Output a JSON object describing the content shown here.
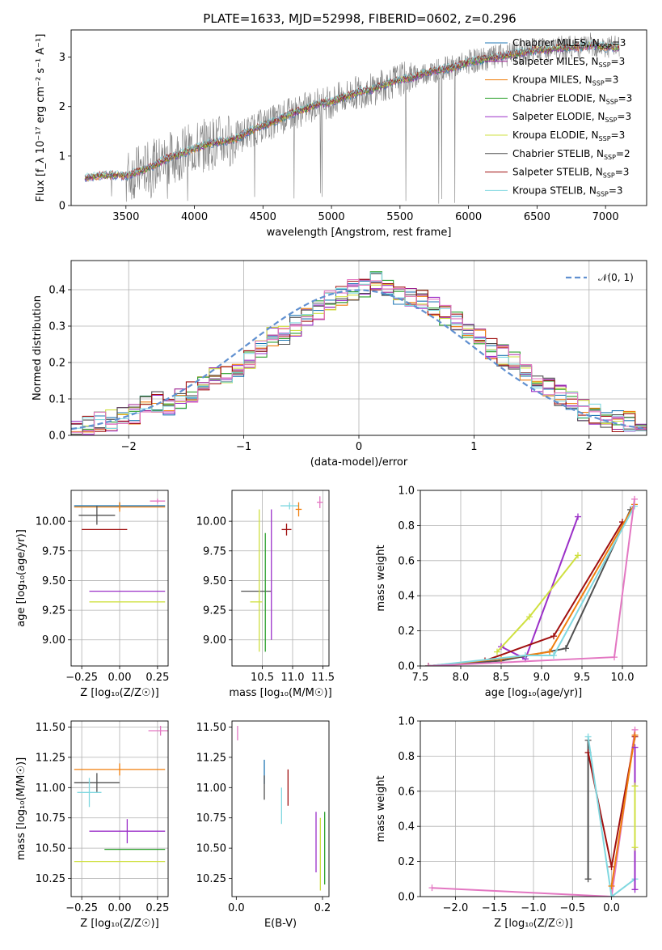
{
  "figure": {
    "title": "PLATE=1633, MJD=52998, FIBERID=0602, z=0.296"
  },
  "colors": {
    "Chabrier MILES": "#1f77b4",
    "Salpeter MILES": "#9c1f8f",
    "Kroupa MILES": "#f07f0e",
    "Chabrier ELODIE": "#2ca02c",
    "Salpeter ELODIE": "#9b30c8",
    "Kroupa ELODIE": "#cfe040",
    "Chabrier STELIB": "#505050",
    "Salpeter STELIB": "#a01010",
    "Kroupa STELIB": "#80d8e0",
    "pink": "#e377c2",
    "normal": "#6090d0"
  },
  "chart_data": [
    {
      "id": "spectrum",
      "type": "line",
      "xlabel": "wavelength [Angstrom, rest frame]",
      "ylabel": "Flux [f_λ 10⁻¹⁷ erg cm⁻² s⁻¹ A⁻¹]",
      "xlim": [
        3100,
        7300
      ],
      "ylim": [
        0,
        3.55
      ],
      "xticks": [
        3500,
        4000,
        4500,
        5000,
        5500,
        6000,
        6500,
        7000
      ],
      "yticks": [
        0,
        1,
        2,
        3
      ],
      "x": [
        3200,
        3300,
        3400,
        3500,
        3600,
        3700,
        3800,
        3900,
        4000,
        4100,
        4200,
        4300,
        4400,
        4500,
        4600,
        4700,
        4800,
        4900,
        5000,
        5100,
        5200,
        5300,
        5400,
        5500,
        5600,
        5700,
        5800,
        5900,
        6000,
        6100,
        6200,
        6300,
        6400,
        6500,
        6600,
        6700,
        6800,
        6900,
        7000,
        7100
      ],
      "series": [
        {
          "name": "data",
          "values": [
            0.55,
            0.6,
            0.62,
            0.6,
            0.7,
            0.8,
            0.95,
            1.05,
            1.15,
            1.25,
            1.3,
            1.35,
            1.5,
            1.62,
            1.72,
            1.85,
            1.95,
            2.05,
            2.1,
            2.2,
            2.3,
            2.35,
            2.45,
            2.55,
            2.6,
            2.7,
            2.75,
            2.8,
            2.9,
            2.95,
            3.0,
            3.05,
            3.1,
            3.15,
            3.15,
            3.2,
            3.2,
            3.25,
            3.2,
            3.2
          ]
        },
        {
          "name": "Chabrier MILES, N_SSP=3",
          "values": [
            0.55,
            0.6,
            0.62,
            0.6,
            0.7,
            0.8,
            0.95,
            1.05,
            1.15,
            1.25,
            1.3,
            1.35,
            1.5,
            1.62,
            1.72,
            1.85,
            1.95,
            2.05,
            2.1,
            2.2,
            2.3,
            2.35,
            2.45,
            2.55,
            2.6,
            2.7,
            2.75,
            2.8,
            2.9,
            2.95,
            3.0,
            3.05,
            3.1,
            3.15,
            3.15,
            3.2,
            3.2,
            3.25,
            3.2,
            3.2
          ]
        }
      ],
      "legend": [
        "Chabrier MILES, N_SSP=3",
        "Salpeter MILES, N_SSP=3",
        "Kroupa MILES, N_SSP=3",
        "Chabrier ELODIE, N_SSP=3",
        "Salpeter ELODIE, N_SSP=3",
        "Kroupa ELODIE, N_SSP=3",
        "Chabrier STELIB, N_SSP=2",
        "Salpeter STELIB, N_SSP=3",
        "Kroupa STELIB, N_SSP=3"
      ],
      "legend_location": "right"
    },
    {
      "id": "residuals",
      "type": "line",
      "xlabel": "(data-model)/error",
      "ylabel": "Normed distribution",
      "xlim": [
        -2.5,
        2.5
      ],
      "ylim": [
        0,
        0.48
      ],
      "xticks": [
        -2,
        -1,
        0,
        1,
        2
      ],
      "yticks": [
        0.0,
        0.1,
        0.2,
        0.3,
        0.4
      ],
      "bin_edges_start": -2.5,
      "bin_width": 0.1,
      "series": [
        {
          "name": "hist",
          "values": [
            0.02,
            0.03,
            0.04,
            0.04,
            0.05,
            0.06,
            0.08,
            0.09,
            0.07,
            0.1,
            0.12,
            0.14,
            0.17,
            0.16,
            0.19,
            0.21,
            0.24,
            0.27,
            0.28,
            0.3,
            0.33,
            0.34,
            0.37,
            0.38,
            0.4,
            0.41,
            0.42,
            0.4,
            0.39,
            0.38,
            0.37,
            0.35,
            0.33,
            0.31,
            0.29,
            0.27,
            0.24,
            0.22,
            0.2,
            0.17,
            0.15,
            0.13,
            0.11,
            0.09,
            0.07,
            0.06,
            0.05,
            0.04,
            0.04,
            0.03
          ]
        }
      ],
      "normal_label": "𝒩(0, 1)",
      "grid": true
    },
    {
      "id": "age-vs-Z",
      "type": "scatter",
      "xlabel": "Z [log₁₀(Z/Z☉)]",
      "ylabel": "age  [log₁₀(age/yr)]",
      "xlim": [
        -0.32,
        0.32
      ],
      "ylim": [
        8.78,
        10.26
      ],
      "xticks": [
        -0.25,
        0.0,
        0.25
      ],
      "yticks": [
        9.0,
        9.25,
        9.5,
        9.75,
        10.0
      ],
      "points": [
        {
          "x": 0.0,
          "y": 10.13,
          "xerr": 0.3,
          "yerr": 0.03,
          "model": "Chabrier MILES"
        },
        {
          "x": 0.0,
          "y": 10.12,
          "xerr": 0.3,
          "yerr": 0.04,
          "model": "Kroupa MILES"
        },
        {
          "x": 0.05,
          "y": 9.41,
          "xerr": 0.25,
          "yerr": 0.0,
          "model": "Salpeter ELODIE"
        },
        {
          "x": 0.05,
          "y": 9.32,
          "xerr": 0.25,
          "yerr": 0.0,
          "model": "Kroupa ELODIE"
        },
        {
          "x": -0.15,
          "y": 10.05,
          "xerr": 0.12,
          "yerr": 0.08,
          "model": "Chabrier STELIB"
        },
        {
          "x": -0.1,
          "y": 9.93,
          "xerr": 0.15,
          "yerr": 0.0,
          "model": "Salpeter STELIB"
        },
        {
          "x": 0.25,
          "y": 10.17,
          "xerr": 0.05,
          "yerr": 0.02,
          "model": "pink"
        }
      ],
      "grid": true
    },
    {
      "id": "age-vs-mass",
      "type": "scatter",
      "xlabel": "mass [log₁₀(M/M☉)]",
      "xlim": [
        10.0,
        11.6
      ],
      "ylim": [
        8.78,
        10.26
      ],
      "xticks": [
        10.5,
        11.0,
        11.5
      ],
      "yticks": [
        9.0,
        9.25,
        9.5,
        9.75,
        10.0
      ],
      "points": [
        {
          "x": 10.4,
          "y": 9.41,
          "xerr": 0.25,
          "yerr": 0.0,
          "model": "Chabrier STELIB"
        },
        {
          "x": 10.4,
          "y": 9.32,
          "xerr": 0.1,
          "yerr": 0.0,
          "model": "Kroupa ELODIE"
        },
        {
          "x": 10.45,
          "y": 9.5,
          "xerr": 0.0,
          "yerr": 0.6,
          "model": "Kroupa ELODIE"
        },
        {
          "x": 10.55,
          "y": 9.4,
          "xerr": 0.0,
          "yerr": 0.5,
          "model": "Chabrier ELODIE"
        },
        {
          "x": 10.65,
          "y": 9.55,
          "xerr": 0.0,
          "yerr": 0.55,
          "model": "Salpeter ELODIE"
        },
        {
          "x": 10.9,
          "y": 9.93,
          "xerr": 0.08,
          "yerr": 0.05,
          "model": "Salpeter STELIB"
        },
        {
          "x": 10.95,
          "y": 10.13,
          "xerr": 0.15,
          "yerr": 0.03,
          "model": "Kroupa STELIB"
        },
        {
          "x": 11.1,
          "y": 10.1,
          "xerr": 0.05,
          "yerr": 0.06,
          "model": "Kroupa MILES"
        },
        {
          "x": 11.45,
          "y": 10.16,
          "xerr": 0.05,
          "yerr": 0.05,
          "model": "pink"
        }
      ],
      "grid": true
    },
    {
      "id": "weight-vs-age",
      "type": "line",
      "xlabel": "age  [log₁₀(age/yr)]",
      "ylabel": "mass weight",
      "xlim": [
        7.5,
        10.3
      ],
      "ylim": [
        0.0,
        1.0
      ],
      "xticks": [
        7.5,
        8.0,
        8.5,
        9.0,
        9.5,
        10.0
      ],
      "yticks": [
        0.0,
        0.2,
        0.4,
        0.6,
        0.8,
        1.0
      ],
      "series": [
        {
          "name": "Salpeter ELODIE",
          "x": [
            8.5,
            8.8,
            9.45
          ],
          "y": [
            0.11,
            0.04,
            0.85
          ]
        },
        {
          "name": "Kroupa ELODIE",
          "x": [
            8.45,
            8.85,
            9.45
          ],
          "y": [
            0.08,
            0.28,
            0.63
          ]
        },
        {
          "name": "Salpeter STELIB",
          "x": [
            7.6,
            8.3,
            9.15,
            10.0
          ],
          "y": [
            0.0,
            0.03,
            0.17,
            0.82
          ]
        },
        {
          "name": "Chabrier STELIB",
          "x": [
            7.6,
            8.5,
            9.3,
            10.1
          ],
          "y": [
            0.0,
            0.03,
            0.1,
            0.89
          ]
        },
        {
          "name": "Kroupa MILES",
          "x": [
            7.6,
            8.5,
            9.1,
            10.15
          ],
          "y": [
            0.0,
            0.04,
            0.08,
            0.92
          ]
        },
        {
          "name": "Kroupa STELIB",
          "x": [
            7.6,
            8.8,
            9.15,
            10.15
          ],
          "y": [
            0.0,
            0.06,
            0.06,
            0.91
          ]
        },
        {
          "name": "pink",
          "x": [
            7.6,
            9.9,
            10.15
          ],
          "y": [
            0.0,
            0.05,
            0.95
          ]
        }
      ],
      "grid": true
    },
    {
      "id": "mass-vs-Z",
      "type": "scatter",
      "xlabel": "Z [log₁₀(Z/Z☉)]",
      "ylabel": "mass [log₁₀(M/M☉)]",
      "xlim": [
        -0.32,
        0.32
      ],
      "ylim": [
        10.1,
        11.55
      ],
      "xticks": [
        -0.25,
        0.0,
        0.25
      ],
      "yticks": [
        10.25,
        10.5,
        10.75,
        11.0,
        11.25,
        11.5
      ],
      "points": [
        {
          "x": 0.27,
          "y": 11.47,
          "xerr": 0.08,
          "yerr": 0.04,
          "model": "pink"
        },
        {
          "x": 0.0,
          "y": 11.15,
          "xerr": 0.3,
          "yerr": 0.05,
          "model": "Kroupa MILES"
        },
        {
          "x": -0.15,
          "y": 11.04,
          "xerr": 0.15,
          "yerr": 0.08,
          "model": "Chabrier STELIB"
        },
        {
          "x": -0.2,
          "y": 10.96,
          "xerr": 0.08,
          "yerr": 0.12,
          "model": "Kroupa STELIB"
        },
        {
          "x": 0.05,
          "y": 10.64,
          "xerr": 0.25,
          "yerr": 0.1,
          "model": "Salpeter ELODIE"
        },
        {
          "x": 0.1,
          "y": 10.49,
          "xerr": 0.2,
          "yerr": 0.0,
          "model": "Chabrier ELODIE"
        },
        {
          "x": 0.0,
          "y": 10.39,
          "xerr": 0.3,
          "yerr": 0.0,
          "model": "Kroupa ELODIE"
        }
      ],
      "grid": true
    },
    {
      "id": "mass-vs-ebv",
      "type": "scatter",
      "xlabel": "E(B-V)",
      "xlim": [
        -0.01,
        0.215
      ],
      "ylim": [
        10.1,
        11.55
      ],
      "xticks": [
        0.0,
        0.2
      ],
      "yticks": [
        10.25,
        10.5,
        10.75,
        11.0,
        11.25,
        11.5
      ],
      "points": [
        {
          "x": 0.003,
          "y": 11.45,
          "xerr": 0.0,
          "yerr": 0.06,
          "model": "pink"
        },
        {
          "x": 0.065,
          "y": 11.13,
          "xerr": 0.0,
          "yerr": 0.1,
          "model": "Chabrier MILES"
        },
        {
          "x": 0.065,
          "y": 11.0,
          "xerr": 0.0,
          "yerr": 0.1,
          "model": "Chabrier STELIB"
        },
        {
          "x": 0.12,
          "y": 11.0,
          "xerr": 0.0,
          "yerr": 0.15,
          "model": "Salpeter STELIB"
        },
        {
          "x": 0.105,
          "y": 10.85,
          "xerr": 0.0,
          "yerr": 0.15,
          "model": "Kroupa STELIB"
        },
        {
          "x": 0.185,
          "y": 10.55,
          "xerr": 0.0,
          "yerr": 0.25,
          "model": "Salpeter ELODIE"
        },
        {
          "x": 0.195,
          "y": 10.45,
          "xerr": 0.0,
          "yerr": 0.3,
          "model": "Kroupa ELODIE"
        },
        {
          "x": 0.205,
          "y": 10.5,
          "xerr": 0.0,
          "yerr": 0.3,
          "model": "Chabrier ELODIE"
        }
      ],
      "grid": false
    },
    {
      "id": "weight-vs-Z",
      "type": "line",
      "xlabel": "Z [log₁₀(Z/Z☉)]",
      "ylabel": "mass weight",
      "xlim": [
        -2.45,
        0.45
      ],
      "ylim": [
        0.0,
        1.0
      ],
      "xticks": [
        -2.0,
        -1.5,
        -1.0,
        -0.5,
        0.0
      ],
      "yticks": [
        0.0,
        0.2,
        0.4,
        0.6,
        0.8,
        1.0
      ],
      "series": [
        {
          "name": "pink",
          "x": [
            -2.3,
            0.0,
            0.3
          ],
          "y": [
            0.05,
            0.0,
            0.95
          ]
        },
        {
          "name": "Chabrier STELIB",
          "x": [
            -0.3,
            -0.3
          ],
          "y": [
            0.1,
            0.89
          ]
        },
        {
          "name": "Salpeter STELIB",
          "x": [
            -0.3,
            0.0,
            0.3
          ],
          "y": [
            0.82,
            0.17,
            0.91
          ]
        },
        {
          "name": "Kroupa STELIB",
          "x": [
            -0.3,
            0.0,
            0.3
          ],
          "y": [
            0.91,
            0.0,
            0.1
          ]
        },
        {
          "name": "Kroupa MILES",
          "x": [
            0.0,
            0.3
          ],
          "y": [
            0.06,
            0.92
          ]
        },
        {
          "name": "Salpeter ELODIE",
          "x": [
            0.3,
            0.3
          ],
          "y": [
            0.04,
            0.85
          ]
        },
        {
          "name": "Kroupa ELODIE",
          "x": [
            0.3,
            0.3
          ],
          "y": [
            0.28,
            0.63
          ]
        }
      ],
      "grid": true
    }
  ]
}
